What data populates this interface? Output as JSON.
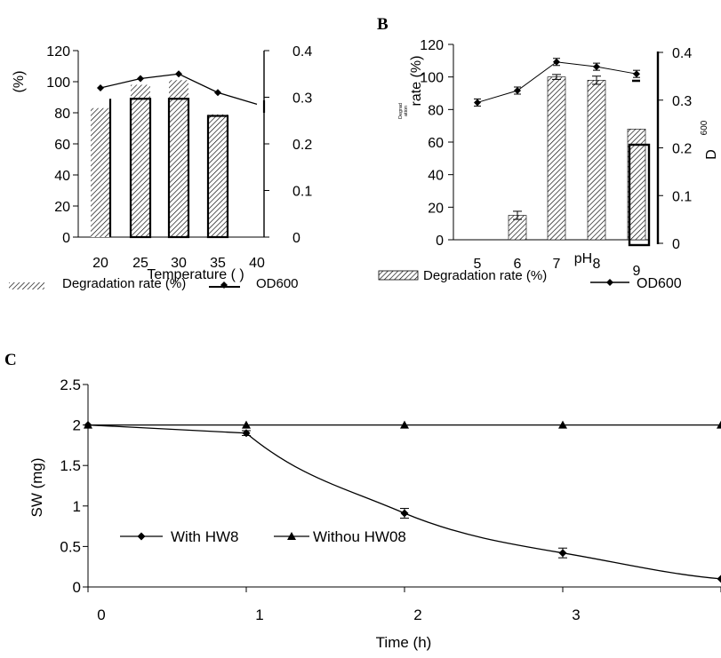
{
  "panels": {
    "a": {
      "letter": ""
    },
    "b": {
      "letter": "B"
    },
    "c": {
      "letter": "C"
    }
  },
  "chart_data": [
    {
      "id": "a",
      "type": "bar",
      "xlabel": "Temperature (  )",
      "ylabel": "(%)",
      "y2label": "",
      "categories": [
        "20",
        "25",
        "30",
        "35",
        "40"
      ],
      "ylim": [
        0,
        120
      ],
      "yticks": [
        "0",
        "20",
        "40",
        "60",
        "80",
        "100",
        "120"
      ],
      "y2lim": [
        0,
        0.4
      ],
      "y2ticks": [
        "0",
        "0.1",
        "0.2",
        "0.3",
        "0.4"
      ],
      "series": [
        {
          "name": "Degradation rate (%)",
          "kind": "bar",
          "values": [
            83,
            98,
            101,
            79,
            0
          ]
        },
        {
          "name": "OD600",
          "kind": "line",
          "axis": "right",
          "values": [
            0.32,
            0.34,
            0.35,
            0.31,
            0.285
          ]
        }
      ],
      "legend": {
        "placement": "bottom"
      }
    },
    {
      "id": "b",
      "type": "bar",
      "xlabel": "pH",
      "ylabel": "rate (%)",
      "ylabel_small": "Degrad\nation",
      "y2label": "D",
      "y2label_sub": "600",
      "categories": [
        "5",
        "6",
        "7",
        "8",
        "9"
      ],
      "ylim": [
        0,
        120
      ],
      "yticks": [
        "0",
        "20",
        "40",
        "60",
        "80",
        "100",
        "120"
      ],
      "y2lim": [
        0,
        0.4
      ],
      "y2ticks": [
        "0",
        "0.1",
        "0.2",
        "0.3",
        "0.4"
      ],
      "series": [
        {
          "name": "Degradation rate (%)",
          "kind": "bar",
          "values": [
            0,
            15,
            100,
            98,
            68
          ]
        },
        {
          "name": "OD600",
          "kind": "line",
          "axis": "right",
          "values": [
            0.295,
            0.32,
            0.38,
            0.37,
            0.355
          ]
        }
      ],
      "legend": {
        "placement": "bottom"
      }
    },
    {
      "id": "c",
      "type": "line",
      "xlabel": "Time (h)",
      "ylabel": "SW (mg)",
      "x": [
        0,
        1,
        2,
        3,
        4
      ],
      "xticks": [
        "0",
        "1",
        "2",
        "3",
        "4"
      ],
      "ylim": [
        0,
        2.5
      ],
      "yticks": [
        "0",
        "0.5",
        "1",
        "1.5",
        "2",
        "2.5"
      ],
      "series": [
        {
          "name": "With HW8",
          "marker": "diamond",
          "values": [
            2,
            1.9,
            0.91,
            0.42,
            0.1
          ],
          "errors": [
            0,
            0.03,
            0.06,
            0.06,
            0
          ]
        },
        {
          "name": "Withou HW08",
          "marker": "triangle",
          "values": [
            2,
            2,
            2,
            2,
            2
          ]
        }
      ],
      "legend": {
        "placement": "inside-lower-left"
      }
    }
  ]
}
